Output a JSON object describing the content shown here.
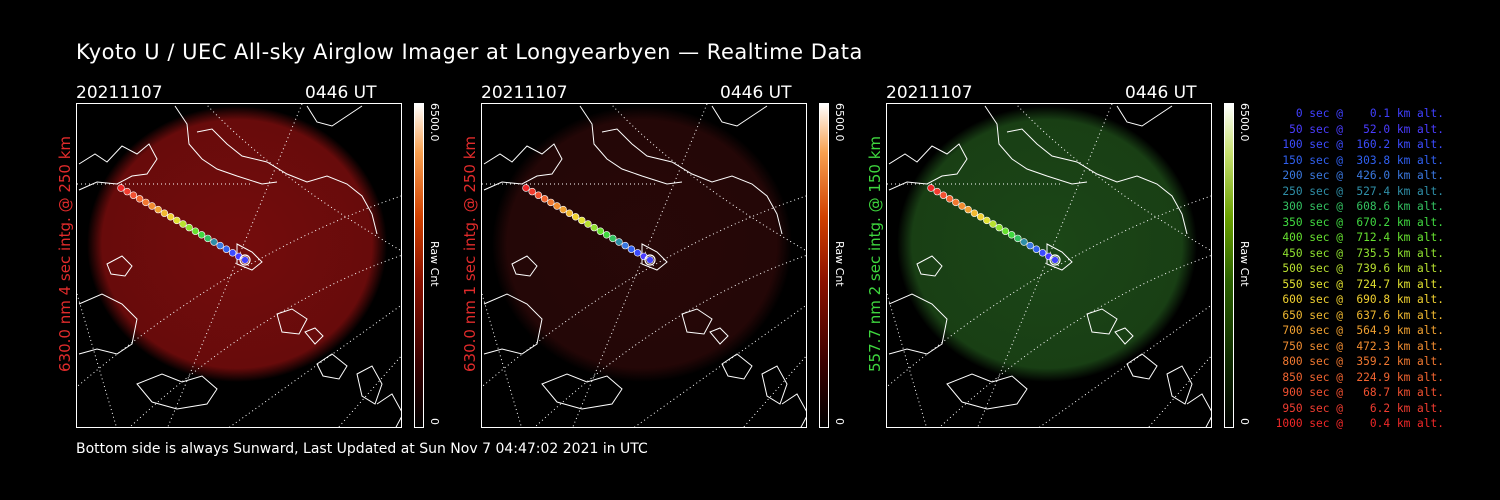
{
  "title": "Kyoto U / UEC All-sky Airglow Imager at Longyearbyen — Realtime Data",
  "footer": "Bottom side is always Sunward, Last Updated at Sun Nov  7 04:47:02 2021 in UTC",
  "panels": [
    {
      "date": "20211107",
      "time": "0446 UT",
      "ylabel": "630.0 nm 4 sec intg. @ 250 km",
      "color": "#e02b2b",
      "glow": "#7a0d0d",
      "cbar_max": "6500.0",
      "cbar_unit": "Raw Cnt",
      "cbar_min": "0"
    },
    {
      "date": "20211107",
      "time": "0446 UT",
      "ylabel": "630.0 nm 1 sec intg. @ 250 km",
      "color": "#e02b2b",
      "glow": "#2a0808",
      "cbar_max": "6500.0",
      "cbar_unit": "Raw Cnt",
      "cbar_min": "0"
    },
    {
      "date": "20211107",
      "time": "0446 UT",
      "ylabel": "557.7 nm 2 sec intg. @ 150 km",
      "color": "#3ed63e",
      "glow": "#1d4a18",
      "cbar_max": "6500.0",
      "cbar_unit": "Raw Cnt",
      "cbar_min": "0"
    }
  ],
  "legend": [
    {
      "text": "   0 sec @    0.1 km alt.",
      "color": "#4040ff"
    },
    {
      "text": "  50 sec @   52.0 km alt.",
      "color": "#4a3cff"
    },
    {
      "text": " 100 sec @  160.2 km alt.",
      "color": "#3c4cff"
    },
    {
      "text": " 150 sec @  303.8 km alt.",
      "color": "#3060f0"
    },
    {
      "text": " 200 sec @  426.0 km alt.",
      "color": "#3a78e0"
    },
    {
      "text": " 250 sec @  527.4 km alt.",
      "color": "#2f8fa8"
    },
    {
      "text": " 300 sec @  608.6 km alt.",
      "color": "#33c060"
    },
    {
      "text": " 350 sec @  670.2 km alt.",
      "color": "#40d840"
    },
    {
      "text": " 400 sec @  712.4 km alt.",
      "color": "#66e030"
    },
    {
      "text": " 450 sec @  735.5 km alt.",
      "color": "#8ee030"
    },
    {
      "text": " 500 sec @  739.6 km alt.",
      "color": "#b8e030"
    },
    {
      "text": " 550 sec @  724.7 km alt.",
      "color": "#e0e030"
    },
    {
      "text": " 600 sec @  690.8 km alt.",
      "color": "#f0d030"
    },
    {
      "text": " 650 sec @  637.6 km alt.",
      "color": "#f0b830"
    },
    {
      "text": " 700 sec @  564.9 km alt.",
      "color": "#f0a030"
    },
    {
      "text": " 750 sec @  472.3 km alt.",
      "color": "#f08c30"
    },
    {
      "text": " 800 sec @  359.2 km alt.",
      "color": "#f07830"
    },
    {
      "text": " 850 sec @  224.9 km alt.",
      "color": "#f06430"
    },
    {
      "text": " 900 sec @   68.7 km alt.",
      "color": "#f05030"
    },
    {
      "text": " 950 sec @    6.2 km alt.",
      "color": "#f03c30"
    },
    {
      "text": "1000 sec @    0.4 km alt.",
      "color": "#f02828"
    }
  ]
}
